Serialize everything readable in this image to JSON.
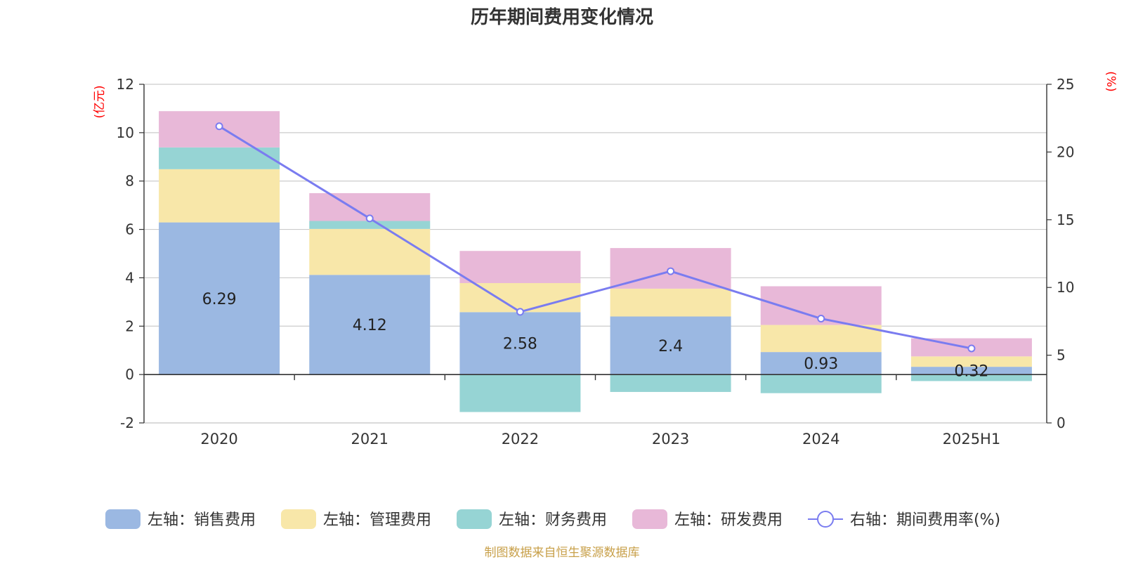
{
  "title": "历年期间费用变化情况",
  "source": "制图数据来自恒生聚源数据库",
  "chart_data": {
    "type": "bar",
    "stacked": true,
    "title": "历年期间费用变化情况",
    "categories": [
      "2020",
      "2021",
      "2022",
      "2023",
      "2024",
      "2025H1"
    ],
    "left_axis": {
      "unit": "(亿元)",
      "ylim": [
        -2,
        12
      ],
      "ticks": [
        -2,
        0,
        2,
        4,
        6,
        8,
        10,
        12
      ]
    },
    "right_axis": {
      "unit": "(%)",
      "ylim": [
        0,
        25
      ],
      "ticks": [
        0,
        5,
        10,
        15,
        20,
        25
      ]
    },
    "series": [
      {
        "name": "左轴：销售费用",
        "type": "bar",
        "axis": "left",
        "color": "#9bb8e2",
        "values": [
          6.29,
          4.12,
          2.58,
          2.4,
          0.93,
          0.32
        ],
        "show_labels": true
      },
      {
        "name": "左轴：管理费用",
        "type": "bar",
        "axis": "left",
        "color": "#f8e7a9",
        "values": [
          2.2,
          1.9,
          1.2,
          1.15,
          1.12,
          0.43
        ]
      },
      {
        "name": "左轴：财务费用",
        "type": "bar",
        "axis": "left",
        "color": "#96d4d4",
        "values": [
          0.9,
          0.33,
          -1.55,
          -0.72,
          -0.77,
          -0.27
        ]
      },
      {
        "name": "左轴：研发费用",
        "type": "bar",
        "axis": "left",
        "color": "#e8b8d8",
        "values": [
          1.5,
          1.15,
          1.33,
          1.68,
          1.6,
          0.75
        ]
      },
      {
        "name": "右轴：期间费用率(%)",
        "type": "line",
        "axis": "right",
        "color": "#7a7cf0",
        "values": [
          21.9,
          15.1,
          8.2,
          11.2,
          7.7,
          5.5
        ]
      }
    ],
    "grid": true,
    "legend_position": "bottom"
  }
}
